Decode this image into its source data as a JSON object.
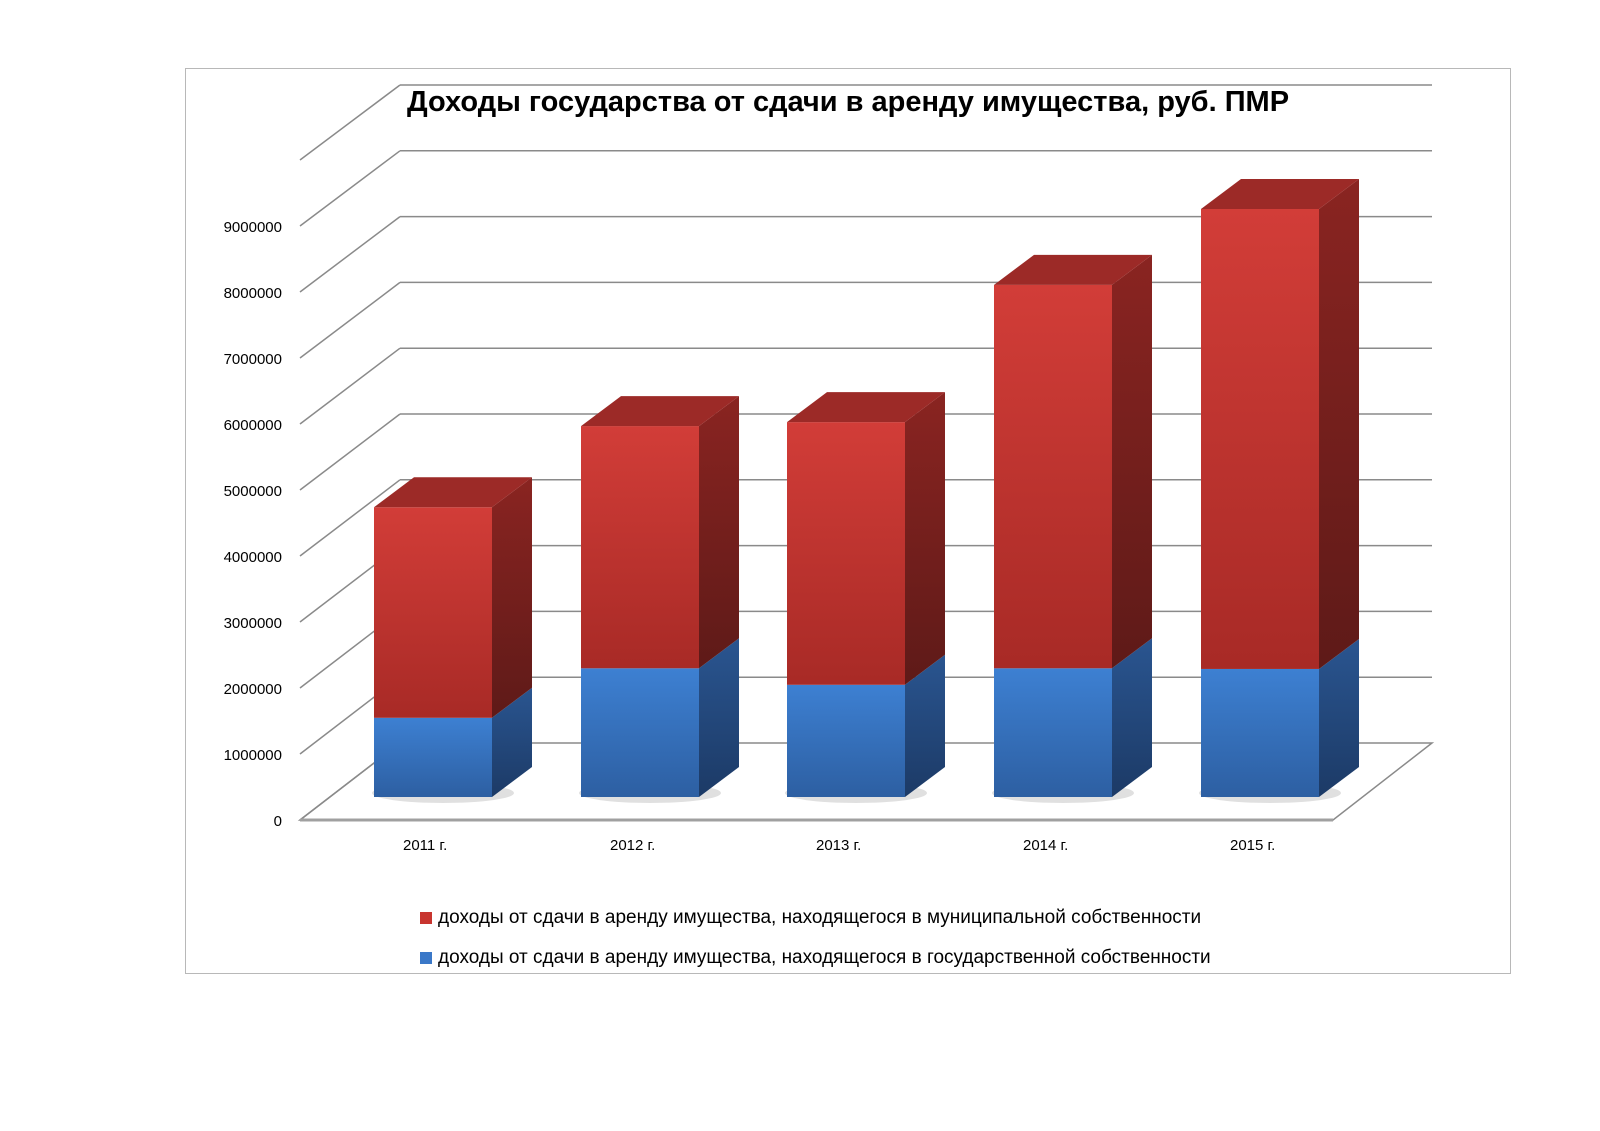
{
  "chart_data": {
    "type": "bar",
    "subtype": "stacked-3d",
    "title": "Доходы государства от сдачи в аренду имущества, руб. ПМР",
    "categories": [
      "2011 г.",
      "2012 г.",
      "2013 г.",
      "2014 г.",
      "2015 г."
    ],
    "series": [
      {
        "name": "доходы от сдачи в аренду имущества, находящегося в государственной собственности",
        "color": "#3a78c8",
        "values": [
          1200000,
          1950000,
          1700000,
          1950000,
          1940000
        ]
      },
      {
        "name": "доходы от сдачи в аренду имущества, находящегося в муниципальной собственности",
        "color": "#c8352f",
        "values": [
          3190000,
          3670000,
          3980000,
          5810000,
          6970000
        ]
      }
    ],
    "yticks": [
      "0",
      "1000000",
      "2000000",
      "3000000",
      "4000000",
      "5000000",
      "6000000",
      "7000000",
      "8000000",
      "9000000"
    ],
    "ylim": [
      0,
      10000000
    ],
    "xlabel": "",
    "ylabel": "",
    "grid": true,
    "legend": "bottom"
  }
}
